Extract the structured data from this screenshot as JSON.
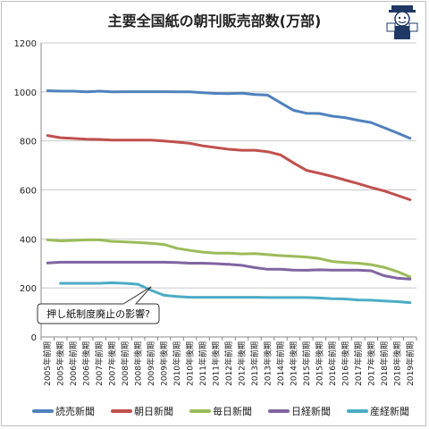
{
  "title": "主要全国紙の朝刊販売部数(万部)",
  "chart_data": {
    "type": "line",
    "title": "主要全国紙の朝刊販売部数(万部)",
    "ylim": [
      0,
      1200
    ],
    "yticks": [
      0,
      200,
      400,
      600,
      800,
      1000,
      1200
    ],
    "grid": "horizontal",
    "legend_position": "bottom",
    "x": [
      "2005年前期",
      "2005年後期",
      "2006年前期",
      "2006年後期",
      "2007年前期",
      "2007年後期",
      "2008年前期",
      "2008年後期",
      "2009年前期",
      "2009年後期",
      "2010年前期",
      "2010年後期",
      "2011年前期",
      "2011年後期",
      "2012年前期",
      "2012年後期",
      "2013年前期",
      "2013年後期",
      "2014年前期",
      "2014年後期",
      "2015年前期",
      "2015年後期",
      "2016年前期",
      "2016年後期",
      "2017年前期",
      "2017年後期",
      "2018年前期",
      "2018年後期",
      "2019年前期"
    ],
    "series": [
      {
        "name": "読売新聞",
        "color": "#4f81bd",
        "values": [
          1005,
          1003,
          1003,
          1000,
          1003,
          1000,
          1001,
          1001,
          1001,
          1001,
          1000,
          1000,
          997,
          994,
          993,
          995,
          989,
          987,
          956,
          925,
          913,
          912,
          901,
          895,
          884,
          875,
          854,
          833,
          811
        ]
      },
      {
        "name": "朝日新聞",
        "color": "#c0504d",
        "values": [
          822,
          813,
          810,
          807,
          806,
          803,
          803,
          803,
          803,
          800,
          795,
          790,
          780,
          773,
          766,
          762,
          762,
          756,
          743,
          710,
          680,
          668,
          655,
          640,
          626,
          610,
          596,
          578,
          560
        ]
      },
      {
        "name": "毎日新聞",
        "color": "#9bbb59",
        "values": [
          396,
          392,
          394,
          396,
          396,
          390,
          388,
          385,
          382,
          377,
          362,
          353,
          346,
          342,
          342,
          339,
          340,
          336,
          332,
          329,
          326,
          320,
          308,
          304,
          301,
          295,
          284,
          267,
          245
        ]
      },
      {
        "name": "日経新聞",
        "color": "#8064a2",
        "values": [
          302,
          305,
          305,
          305,
          305,
          305,
          305,
          305,
          305,
          305,
          304,
          301,
          301,
          299,
          296,
          292,
          283,
          276,
          276,
          273,
          272,
          274,
          273,
          273,
          273,
          270,
          250,
          240,
          236
        ]
      },
      {
        "name": "産経新聞",
        "color": "#4bacc6",
        "values": [
          null,
          219,
          219,
          219,
          219,
          221,
          219,
          215,
          190,
          170,
          165,
          162,
          162,
          162,
          162,
          162,
          162,
          161,
          161,
          161,
          161,
          159,
          156,
          155,
          151,
          150,
          147,
          144,
          140
        ]
      }
    ],
    "annotation": "押し紙制度廃止の影響?"
  }
}
